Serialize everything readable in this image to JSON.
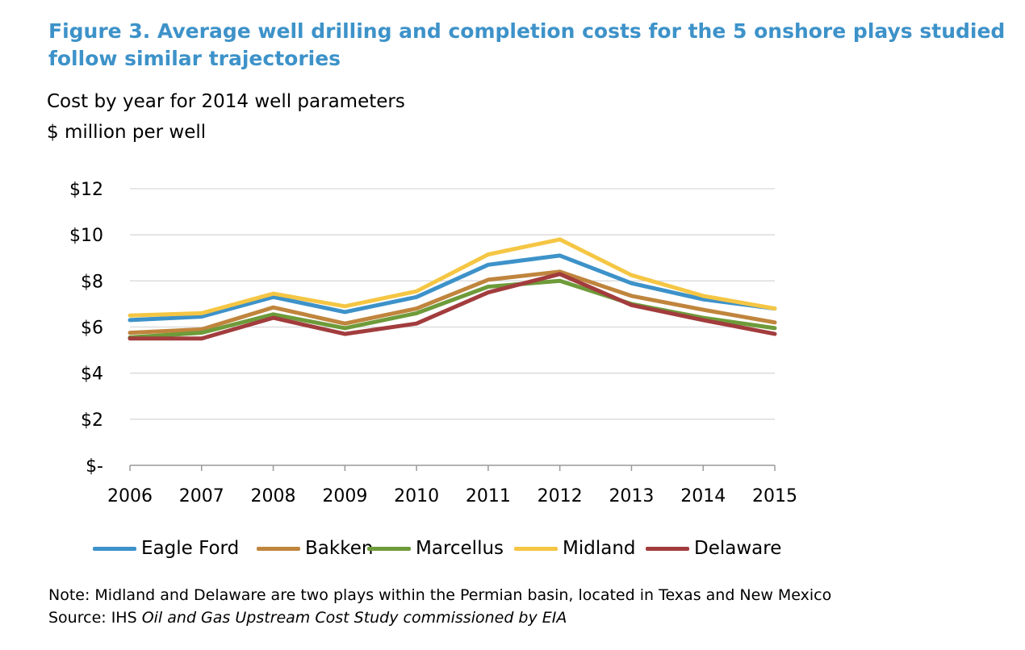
{
  "figure": {
    "title": "Figure 3. Average well drilling and completion costs for the 5 onshore plays studied follow similar trajectories",
    "subtitle_line1": "Cost by year for 2014 well parameters",
    "subtitle_line2": "$ million per well",
    "note": "Note: Midland and Delaware are two plays within the Permian basin, located in Texas and New Mexico",
    "source_prefix": "Source: IHS ",
    "source_italic": "Oil and Gas Upstream Cost Study commissioned by EIA"
  },
  "chart_data": {
    "type": "line",
    "title": "Figure 3. Average well drilling and completion costs for the 5 onshore plays studied follow similar trajectories",
    "ylabel": "$ million per well",
    "x": [
      "2006",
      "2007",
      "2008",
      "2009",
      "2010",
      "2011",
      "2012",
      "2013",
      "2014",
      "2015"
    ],
    "ylim": [
      0,
      12
    ],
    "yticks": [
      0,
      2,
      4,
      6,
      8,
      10,
      12
    ],
    "ytick_labels": [
      "$-",
      "$2",
      "$4",
      "$6",
      "$8",
      "$10",
      "$12"
    ],
    "grid": true,
    "legend_position": "bottom",
    "series": [
      {
        "name": "Eagle Ford",
        "color": "#3d92c9",
        "values": [
          6.3,
          6.45,
          7.3,
          6.65,
          7.3,
          8.7,
          9.1,
          7.9,
          7.2,
          6.8
        ]
      },
      {
        "name": "Bakken",
        "color": "#c0853d",
        "values": [
          5.75,
          5.9,
          6.85,
          6.15,
          6.8,
          8.05,
          8.4,
          7.35,
          6.75,
          6.2
        ]
      },
      {
        "name": "Marcellus",
        "color": "#6e9b3a",
        "values": [
          5.55,
          5.75,
          6.55,
          5.95,
          6.6,
          7.75,
          8.0,
          7.0,
          6.4,
          5.95
        ]
      },
      {
        "name": "Midland",
        "color": "#f5c644",
        "values": [
          6.5,
          6.6,
          7.45,
          6.9,
          7.55,
          9.15,
          9.8,
          8.25,
          7.35,
          6.8
        ]
      },
      {
        "name": "Delaware",
        "color": "#a23c3d",
        "values": [
          5.5,
          5.5,
          6.4,
          5.7,
          6.15,
          7.5,
          8.3,
          6.95,
          6.3,
          5.7
        ]
      }
    ]
  }
}
